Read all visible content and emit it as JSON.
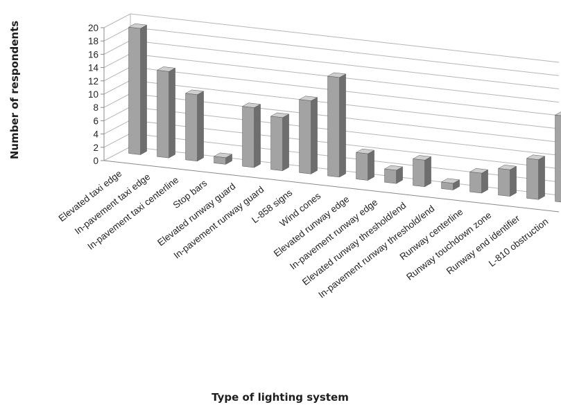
{
  "chart_data": {
    "type": "bar",
    "title": "",
    "xlabel": "Type of lighting system",
    "ylabel": "Number of respondents",
    "ylim": [
      0,
      20
    ],
    "ytick_step": 2,
    "ticks": [
      "0",
      "2",
      "4",
      "6",
      "8",
      "10",
      "12",
      "14",
      "16",
      "18",
      "20"
    ],
    "grid": true,
    "style": "3d-column",
    "colors": {
      "bar_front": "#a3a3a3",
      "bar_side": "#6e6e6e",
      "bar_top": "#cfcfcf",
      "grid": "#b5b5b5"
    },
    "categories": [
      "Elevated taxi edge",
      "In-pavement taxi edge",
      "In-pavement taxi centerline",
      "Stop bars",
      "Elevated runway guard",
      "In-pavement runway guard",
      "L-858 signs",
      "Wind cones",
      "Elevated runway edge",
      "In-pavement runway edge",
      "Elevated runway threshold/end",
      "In-pavement runway threshold/end",
      "Runway centerline",
      "Runway touchdown zone",
      "Runway end identifier",
      "L-810 obstruction"
    ],
    "values": [
      19,
      13,
      10,
      1,
      9,
      8,
      11,
      15,
      4,
      2,
      4,
      1,
      3,
      4,
      6,
      13
    ]
  }
}
